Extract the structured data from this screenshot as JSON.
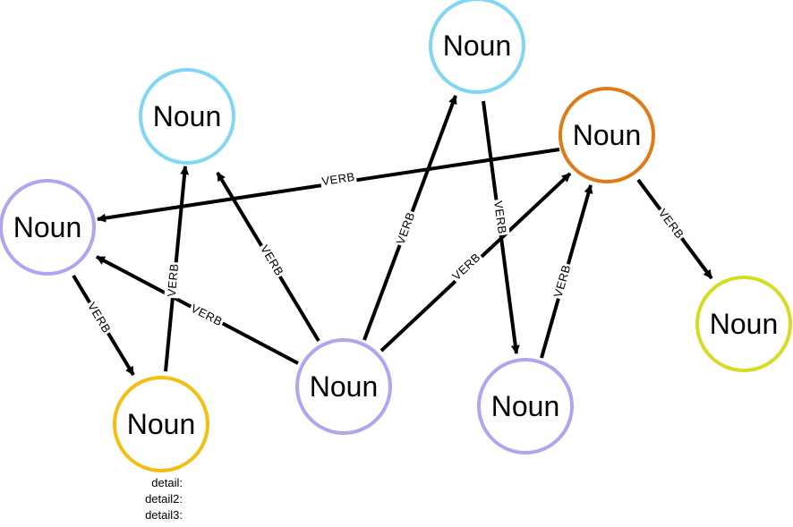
{
  "colors": {
    "blue": "#7fd6f5",
    "purple": "#b3a3f0",
    "orange": "#e17a14",
    "gold": "#f5bf12",
    "yellowgreen": "#d6dc20",
    "edge": "#000000"
  },
  "nodes": [
    {
      "id": "n1",
      "label": "Noun",
      "color": "blue"
    },
    {
      "id": "n2",
      "label": "Noun",
      "color": "blue"
    },
    {
      "id": "n3",
      "label": "Noun",
      "color": "orange"
    },
    {
      "id": "n4",
      "label": "Noun",
      "color": "purple"
    },
    {
      "id": "n5",
      "label": "Noun",
      "color": "purple"
    },
    {
      "id": "n6",
      "label": "Noun",
      "color": "purple"
    },
    {
      "id": "n7",
      "label": "Noun",
      "color": "gold"
    },
    {
      "id": "n8",
      "label": "Noun",
      "color": "yellowgreen"
    }
  ],
  "edges": [
    {
      "id": "e1",
      "from": "n3",
      "to": "n4",
      "label": "VERB"
    },
    {
      "id": "e2",
      "from": "n5",
      "to": "n4",
      "label": "VERB"
    },
    {
      "id": "e3",
      "from": "n7",
      "to": "n1",
      "label": "VERB"
    },
    {
      "id": "e4",
      "from": "n5",
      "to": "n1",
      "label": "VERB"
    },
    {
      "id": "e5",
      "from": "n5",
      "to": "n2",
      "label": "VERB"
    },
    {
      "id": "e6",
      "from": "n5",
      "to": "n3",
      "label": "VERB"
    },
    {
      "id": "e7",
      "from": "n2",
      "to": "n6",
      "label": "VERB"
    },
    {
      "id": "e8",
      "from": "n6",
      "to": "n3",
      "label": "VERB"
    },
    {
      "id": "e9",
      "from": "n3",
      "to": "n8",
      "label": "VERB"
    },
    {
      "id": "e10",
      "from": "n4",
      "to": "n7",
      "label": "VERB"
    }
  ],
  "details": [
    "detail:",
    "detail2:",
    "detail3:"
  ]
}
